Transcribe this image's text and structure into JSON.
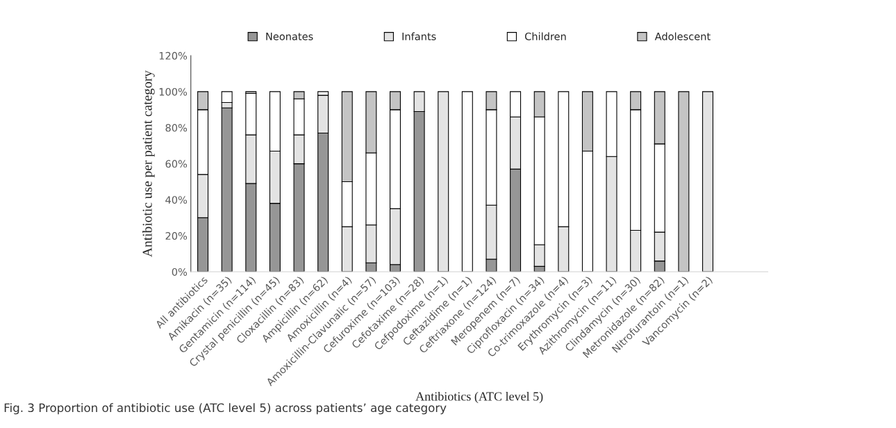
{
  "chart_data": {
    "type": "bar",
    "stacked": true,
    "legend": "top",
    "grid": false,
    "xlabel": "Antibiotics (ATC level 5)",
    "ylabel": "Antibiotic use per patient category",
    "annotations": [
      "Fig. 3 Proportion of antibiotic use (ATC level 5) across patients’ age category"
    ],
    "categories": [
      "All antibiotics",
      "Amikacin (n=35)",
      "Gentamicin (n=114)",
      "Crystal penicillin (n=45)",
      "Cloxacillin (n=83)",
      "Ampicillin (n=62)",
      "Amoxicillin (n=4)",
      "Amoxicillin-Clavunalic (n=57)",
      "Cefuroxime (n=103)",
      "Cefotaxime (n=28)",
      "Cefpodoxime (n=1)",
      "Ceftazidime (n=1)",
      "Ceftriaxone (n=124)",
      "Meropenem (n=7)",
      "Ciprofloxacin (n=34)",
      "Co-trimoxazole (n=4)",
      "Erythromycin (n=3)",
      "Azithromycin (n=11)",
      "Clindamycin (n=30)",
      "Metronidazole (n=82)",
      "Nitrofurantoin (n=1)",
      "Vancomycin (n=2)"
    ],
    "ylim": [
      0,
      120
    ],
    "yticks": [
      {
        "value": 0,
        "label": "0%"
      },
      {
        "value": 20,
        "label": "20%"
      },
      {
        "value": 40,
        "label": "40%"
      },
      {
        "value": 60,
        "label": "60%"
      },
      {
        "value": 80,
        "label": "80%"
      },
      {
        "value": 100,
        "label": "100%"
      },
      {
        "value": 120,
        "label": "120%"
      }
    ],
    "series": [
      {
        "name": "Neonates",
        "color": "#969696",
        "values": [
          30,
          91,
          49,
          38,
          60,
          77,
          0,
          5,
          4,
          89,
          0,
          0,
          7,
          57,
          3,
          0,
          0,
          0,
          0,
          6,
          0,
          0
        ]
      },
      {
        "name": "Infants",
        "color": "#e3e3e3",
        "values": [
          24,
          3,
          27,
          29,
          16,
          21,
          25,
          21,
          31,
          11,
          100,
          0,
          30,
          29,
          12,
          25,
          0,
          64,
          23,
          16,
          0,
          100
        ]
      },
      {
        "name": "Children",
        "color": "#ffffff",
        "values": [
          36,
          6,
          23,
          33,
          20,
          2,
          25,
          40,
          55,
          0,
          0,
          100,
          53,
          14,
          71,
          75,
          67,
          36,
          67,
          49,
          0,
          0
        ]
      },
      {
        "name": "Adolescent",
        "color": "#c4c4c4",
        "values": [
          10,
          0,
          1,
          0,
          4,
          0,
          50,
          34,
          10,
          0,
          0,
          0,
          10,
          0,
          14,
          0,
          33,
          0,
          10,
          29,
          100,
          0
        ]
      }
    ]
  }
}
